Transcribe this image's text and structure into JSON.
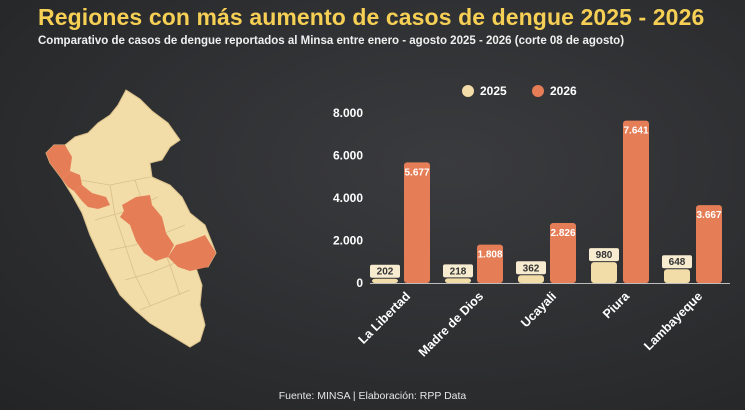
{
  "title": "Regiones con más aumento de casos de dengue 2025 - 2026",
  "subtitle": "Comparativo de casos de dengue reportados al Minsa entre enero - agosto 2025 - 2026 (corte 08 de agosto)",
  "source": "Fuente: MINSA | Elaboración: RPP Data",
  "colors": {
    "series_2025": "#f2dca7",
    "series_2026": "#e57e57",
    "map_base": "#f2dca7",
    "map_highlight": "#e57e57",
    "title": "#f6cf55"
  },
  "map": {
    "icon": "peru-map-icon"
  },
  "chart_data": {
    "type": "bar",
    "categories": [
      "La Libertad",
      "Madre de Dios",
      "Ucayali",
      "Piura",
      "Lambayeque"
    ],
    "series": [
      {
        "name": "2025",
        "values": [
          202,
          218,
          362,
          980,
          648
        ],
        "labels": [
          "202",
          "218",
          "362",
          "980",
          "648"
        ]
      },
      {
        "name": "2026",
        "values": [
          5677,
          1808,
          2826,
          7641,
          3667
        ],
        "labels": [
          "5.677",
          "1.808",
          "2.826",
          "7.641",
          "3.667"
        ]
      }
    ],
    "yticks": [
      0,
      2000,
      4000,
      6000,
      8000
    ],
    "ytick_labels": [
      "0",
      "2.000",
      "4.000",
      "6.000",
      "8.000"
    ],
    "ylim": [
      0,
      8000
    ],
    "legend": "top",
    "grid": false
  }
}
